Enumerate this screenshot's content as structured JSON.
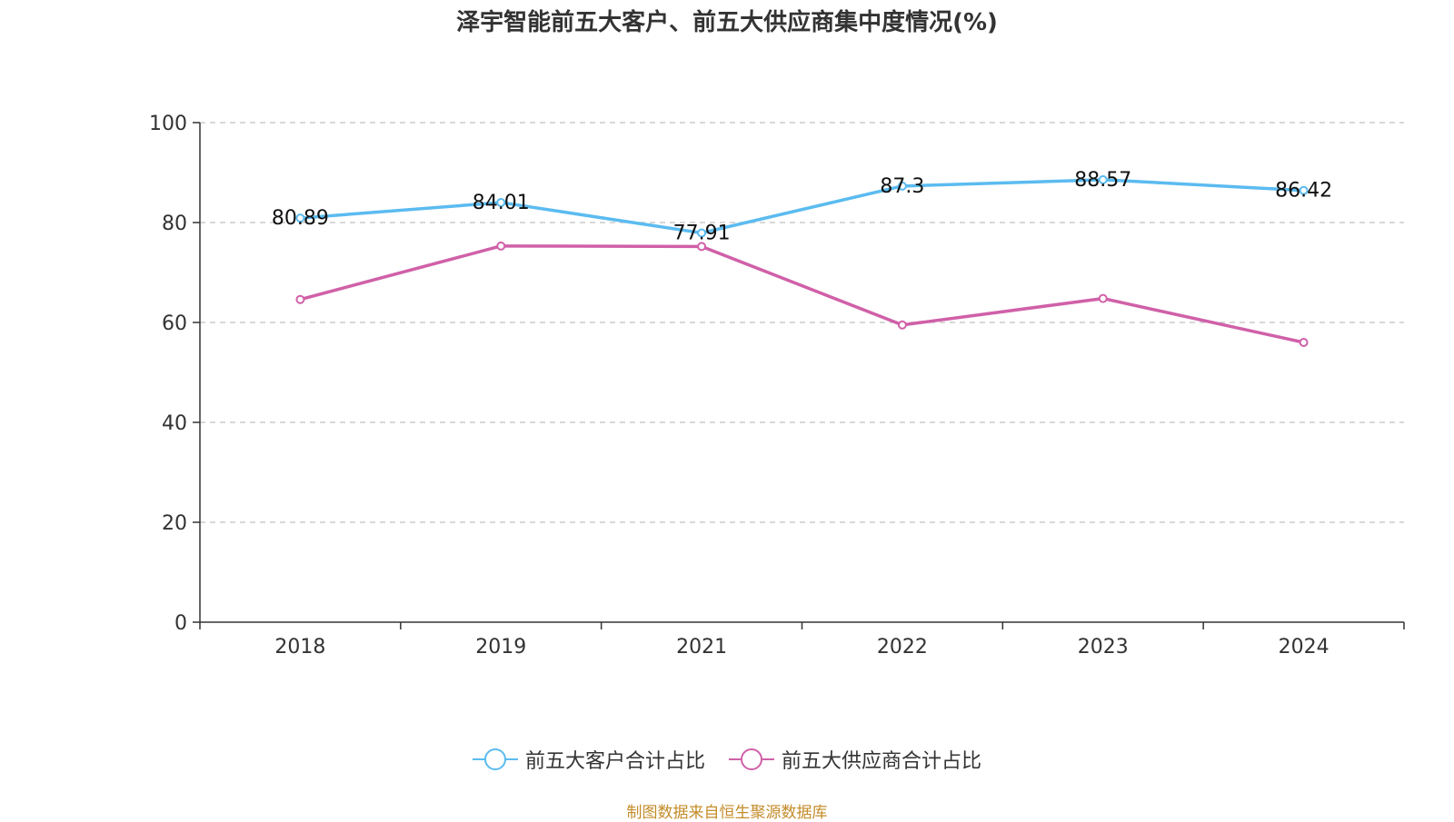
{
  "chart_data": {
    "type": "line",
    "title": "泽宇智能前五大客户、前五大供应商集中度情况(%)",
    "categories": [
      "2018",
      "2019",
      "2021",
      "2022",
      "2023",
      "2024"
    ],
    "ylim": [
      0,
      100
    ],
    "yticks": [
      0,
      20,
      40,
      60,
      80,
      100
    ],
    "grid": true,
    "legend_position": "bottom",
    "series": [
      {
        "name": "前五大客户合计占比",
        "color": "#5bbbf0",
        "values": [
          80.89,
          84.01,
          77.91,
          87.3,
          88.57,
          86.42
        ],
        "labels": [
          "80.89",
          "84.01",
          "77.91",
          "87.3",
          "88.57",
          "86.42"
        ]
      },
      {
        "name": "前五大供应商合计占比",
        "color": "#d060a8",
        "values": [
          64.6,
          75.3,
          75.2,
          59.5,
          64.8,
          56.0
        ]
      }
    ]
  },
  "source": "制图数据来自恒生聚源数据库"
}
